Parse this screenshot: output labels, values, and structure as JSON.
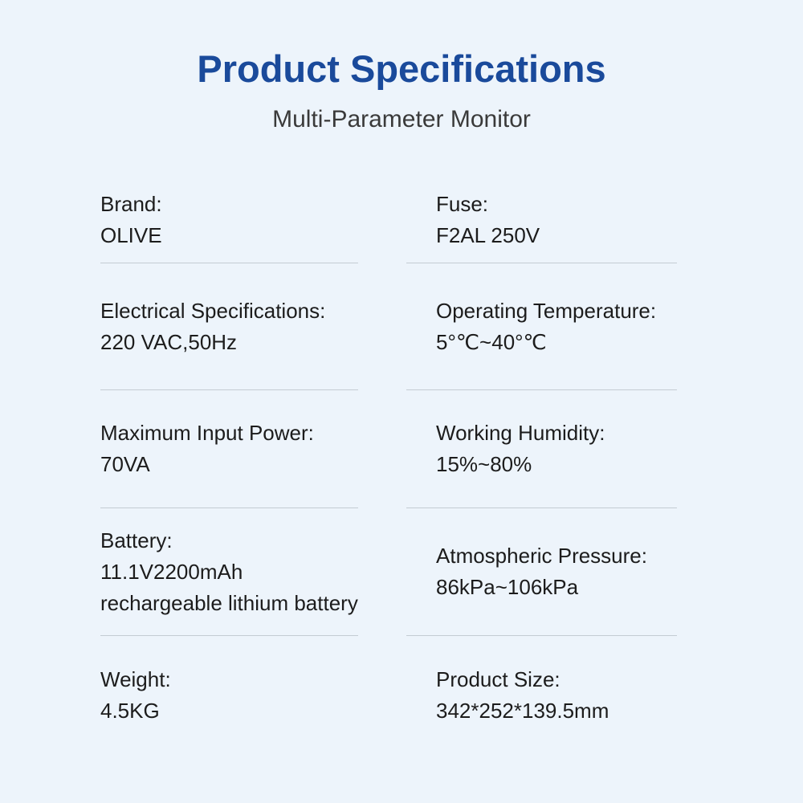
{
  "colors": {
    "bg": "#edf4fb",
    "title_blue": "#1a4a9b",
    "subtitle_gray": "#3a3a3a",
    "body_text": "#1c1c1c",
    "divider": "#c4ccd3"
  },
  "header": {
    "title": "Product Specifications",
    "subtitle": "Multi-Parameter Monitor"
  },
  "specs": {
    "left": [
      {
        "label": "Brand:",
        "value": "OLIVE"
      },
      {
        "label": "Electrical Specifications:",
        "value": "220 VAC,50Hz"
      },
      {
        "label": "Maximum Input Power:",
        "value": "70VA"
      },
      {
        "label": "Battery:",
        "value": "11.1V2200mAh",
        "value2": "rechargeable lithium battery"
      },
      {
        "label": "Weight:",
        "value": "4.5KG"
      }
    ],
    "right": [
      {
        "label": "Fuse:",
        "value": "F2AL 250V"
      },
      {
        "label": "Operating Temperature:",
        "value": "5°℃~40°℃"
      },
      {
        "label": "Working Humidity:",
        "value": "15%~80%"
      },
      {
        "label": "Atmospheric Pressure:",
        "value": "86kPa~106kPa"
      },
      {
        "label": "Product Size:",
        "value": "342*252*139.5mm"
      }
    ]
  }
}
